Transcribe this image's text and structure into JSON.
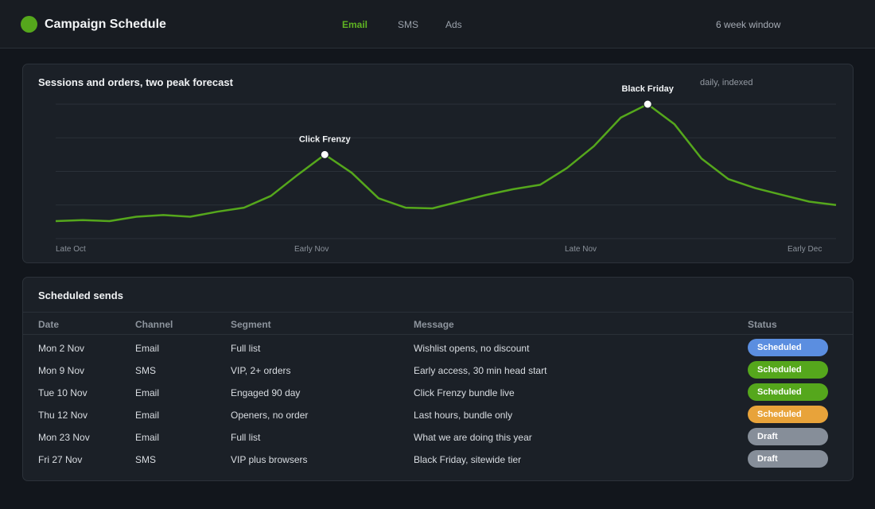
{
  "app": {
    "title": "Campaign Schedule",
    "logo_color": "#55a71c"
  },
  "nav": {
    "tabs": [
      {
        "label": "Email",
        "active": true
      },
      {
        "label": "SMS",
        "active": false
      },
      {
        "label": "Ads",
        "active": false
      }
    ],
    "window_label": "6 week window"
  },
  "chart_card": {
    "title": "Sessions and orders, two peak forecast",
    "note": "daily, indexed"
  },
  "chart_data": {
    "type": "line",
    "title": "Sessions and orders, two peak forecast",
    "x_tick_labels": [
      "Late Oct",
      "Early Nov",
      "Late Nov",
      "Early Dec"
    ],
    "ylim": [
      0,
      4
    ],
    "grid": true,
    "y_gridlines": 5,
    "series": [
      {
        "color": "#55a71c",
        "values": [
          0.52,
          0.55,
          0.52,
          0.65,
          0.7,
          0.65,
          0.8,
          0.92,
          1.27,
          1.9,
          2.5,
          1.96,
          1.2,
          0.92,
          0.9,
          1.1,
          1.3,
          1.47,
          1.6,
          2.1,
          2.75,
          3.6,
          4.0,
          3.4,
          2.38,
          1.77,
          1.5,
          1.3,
          1.1,
          1.0
        ]
      }
    ],
    "annotations": [
      {
        "label": "Click Frenzy",
        "index": 10
      },
      {
        "label": "Black Friday",
        "index": 22
      }
    ]
  },
  "table": {
    "title": "Scheduled sends",
    "columns": [
      "Date",
      "Channel",
      "Segment",
      "Message",
      "Status"
    ],
    "rows": [
      {
        "date": "Mon 2 Nov",
        "channel": "Email",
        "segment": "Full list",
        "message": "Wishlist opens, no discount",
        "status": "Scheduled",
        "status_color": "#5b8ee0"
      },
      {
        "date": "Mon 9 Nov",
        "channel": "SMS",
        "segment": "VIP, 2+ orders",
        "message": "Early access, 30 min head start",
        "status": "Scheduled",
        "status_color": "#55a71c"
      },
      {
        "date": "Tue 10 Nov",
        "channel": "Email",
        "segment": "Engaged 90 day",
        "message": "Click Frenzy bundle live",
        "status": "Scheduled",
        "status_color": "#55a71c"
      },
      {
        "date": "Thu 12 Nov",
        "channel": "Email",
        "segment": "Openers, no order",
        "message": "Last hours, bundle only",
        "status": "Scheduled",
        "status_color": "#e8a33a"
      },
      {
        "date": "Mon 23 Nov",
        "channel": "Email",
        "segment": "Full list",
        "message": "What we are doing this year",
        "status": "Draft",
        "status_color": "#868e99"
      },
      {
        "date": "Fri 27 Nov",
        "channel": "SMS",
        "segment": "VIP plus browsers",
        "message": "Black Friday, sitewide tier",
        "status": "Draft",
        "status_color": "#868e99"
      }
    ]
  }
}
